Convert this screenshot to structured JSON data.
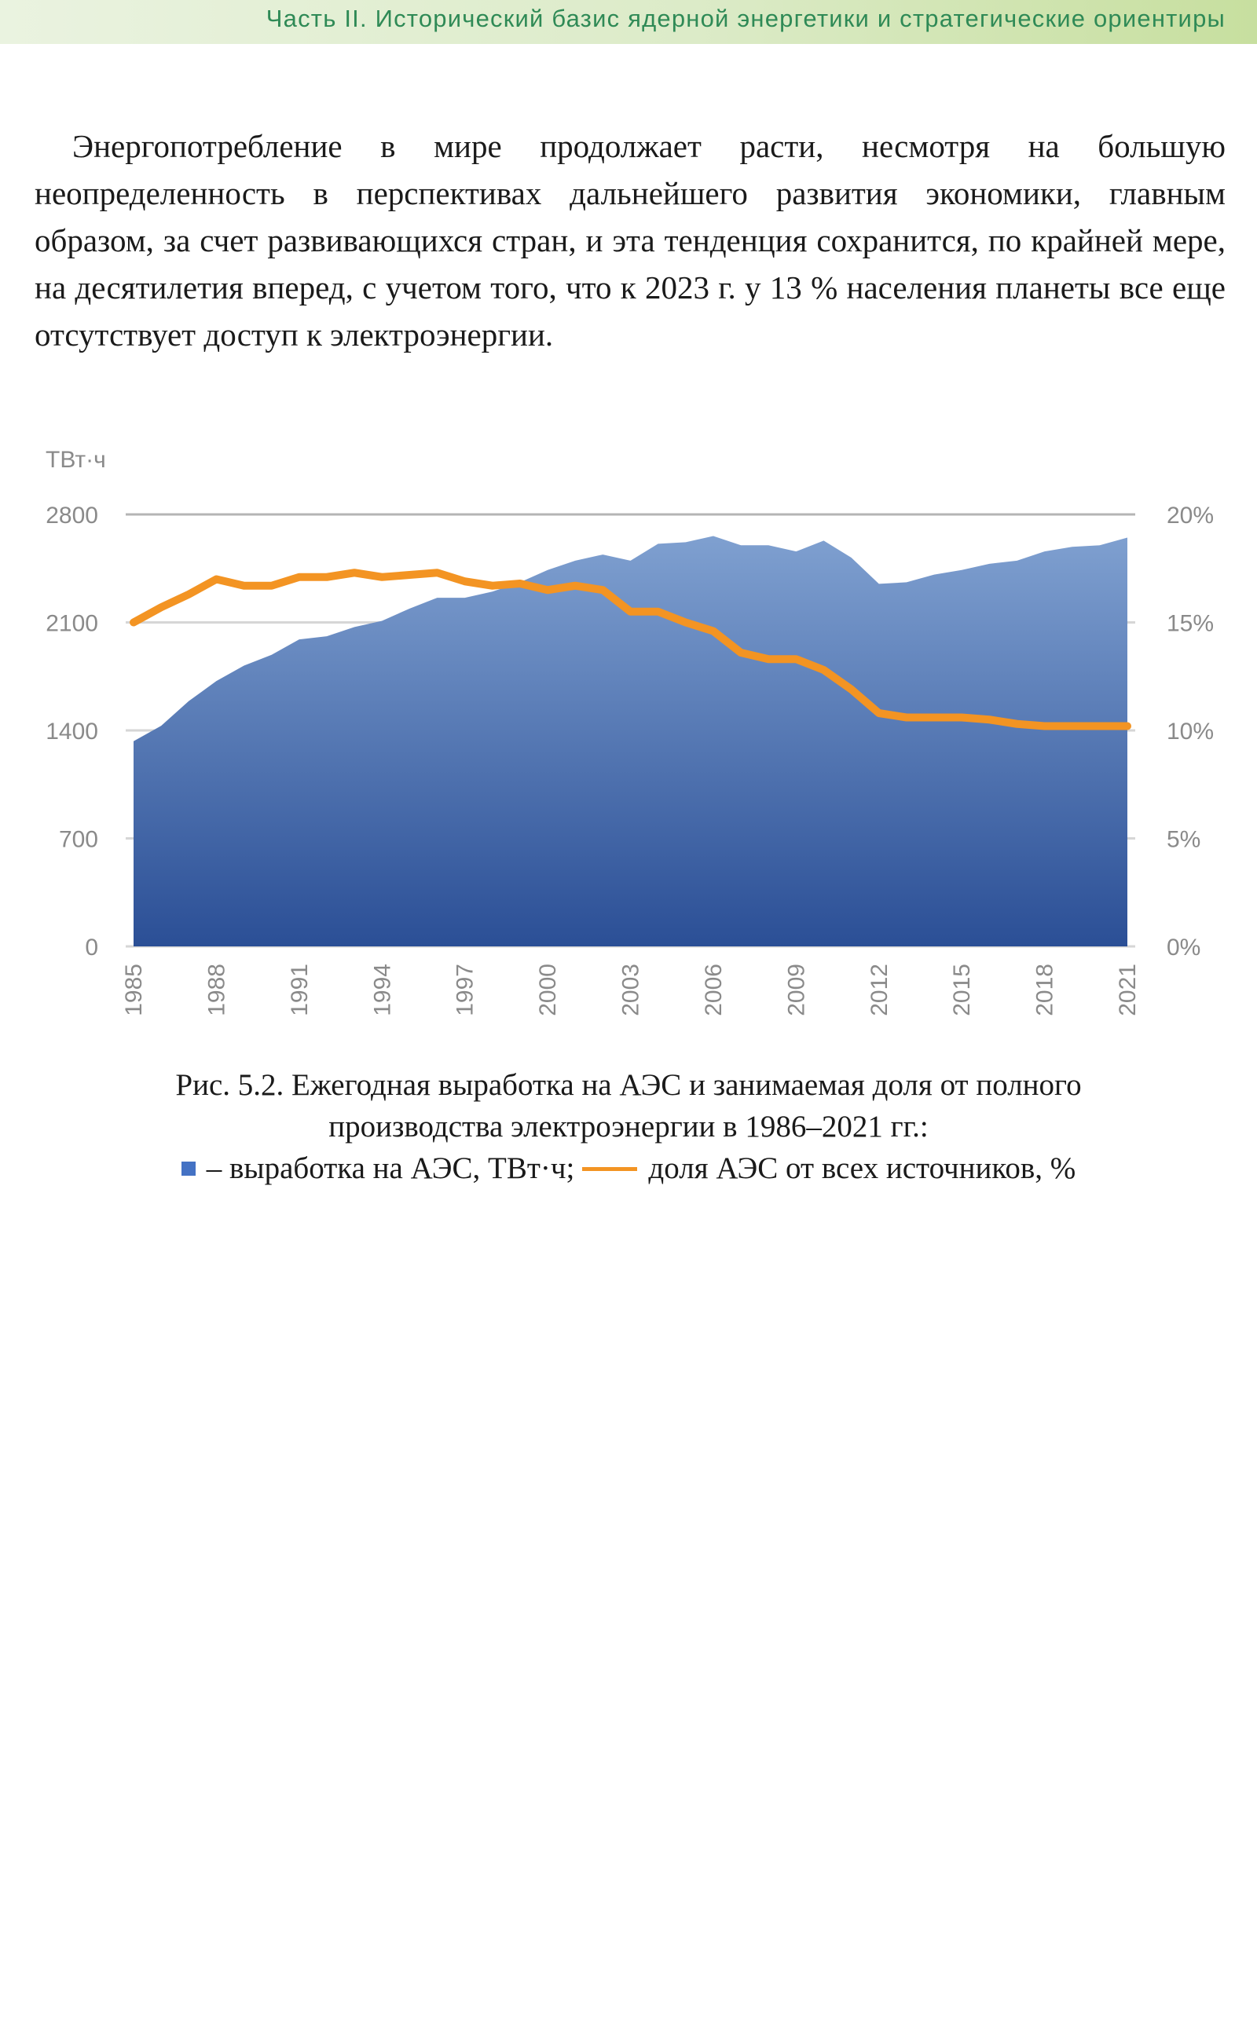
{
  "header": {
    "running_title": "Часть II. Исторический базис ядерной энергетики и стратегические ориентиры"
  },
  "body": {
    "paragraph": "Энергопотребление в мире продолжает расти, несмотря на большую неопределенность в перспективах дальнейшего развития экономики, главным образом, за счет развивающихся стран, и эта тенденция сохранится, по крайней мере, на десятилетия вперед, с учетом того, что к 2023 г. у 13 % населения планеты все еще отсутствует доступ к электроэнергии."
  },
  "chart_data": {
    "type": "area+line",
    "y_unit_label": "ТВт·ч",
    "x": [
      1985,
      1986,
      1987,
      1988,
      1989,
      1990,
      1991,
      1992,
      1993,
      1994,
      1995,
      1996,
      1997,
      1998,
      1999,
      2000,
      2001,
      2002,
      2003,
      2004,
      2005,
      2006,
      2007,
      2008,
      2009,
      2010,
      2011,
      2012,
      2013,
      2014,
      2015,
      2016,
      2017,
      2018,
      2019,
      2020,
      2021
    ],
    "x_tick_labels": [
      "1985",
      "1988",
      "1991",
      "1994",
      "1997",
      "2000",
      "2003",
      "2006",
      "2009",
      "2012",
      "2015",
      "2018",
      "2021"
    ],
    "series": [
      {
        "name": "выработка на АЭС, ТВт·ч",
        "type": "area",
        "axis": "left",
        "color": "#3f6db3",
        "values": [
          1330,
          1430,
          1590,
          1720,
          1820,
          1890,
          1990,
          2010,
          2070,
          2110,
          2190,
          2260,
          2260,
          2300,
          2360,
          2440,
          2500,
          2540,
          2500,
          2610,
          2620,
          2660,
          2600,
          2600,
          2560,
          2630,
          2520,
          2350,
          2360,
          2410,
          2440,
          2480,
          2500,
          2560,
          2590,
          2600,
          2650
        ]
      },
      {
        "name": "доля АЭС от всех источников, %",
        "type": "line",
        "axis": "right",
        "color": "#f39423",
        "values": [
          15.0,
          15.7,
          16.3,
          17.0,
          16.7,
          16.7,
          17.1,
          17.1,
          17.3,
          17.1,
          17.2,
          17.3,
          16.9,
          16.7,
          16.8,
          16.5,
          16.7,
          16.5,
          15.5,
          15.5,
          15.0,
          14.6,
          13.6,
          13.3,
          13.3,
          12.8,
          11.9,
          10.8,
          10.6,
          10.6,
          10.6,
          10.5,
          10.3,
          10.2,
          10.2,
          10.2,
          10.2
        ]
      }
    ],
    "y_left": {
      "ticks": [
        "0",
        "700",
        "1400",
        "2100",
        "2800"
      ],
      "range": [
        0,
        2800
      ]
    },
    "y_right": {
      "ticks": [
        "0%",
        "5%",
        "10%",
        "15%",
        "20%"
      ],
      "range": [
        0,
        20
      ]
    },
    "grid": true
  },
  "caption": {
    "line1": "Рис. 5.2. Ежегодная выработка на АЭС и занимаемая доля от полного",
    "line2": "производства электроэнергии в 1986–2021 гг.:",
    "legend_area_text": "– выработка на АЭС, ТВт·ч;",
    "legend_line_text": "доля АЭС от всех источников, %"
  }
}
